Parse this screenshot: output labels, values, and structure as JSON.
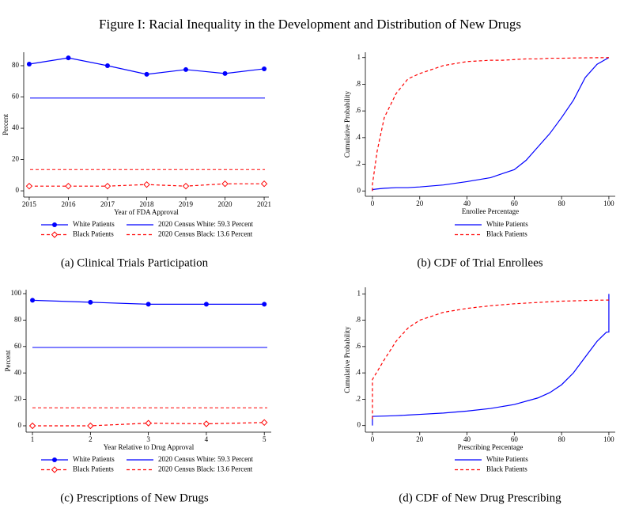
{
  "title": "Figure I: Racial Inequality in the Development and Distribution of New Drugs",
  "chart_data": [
    {
      "type": "line",
      "caption": "(a) Clinical Trials Participation",
      "xlabel": "Year of FDA Approval",
      "ylabel": "Percent",
      "x": [
        2015,
        2016,
        2017,
        2018,
        2019,
        2020,
        2021
      ],
      "xlim": [
        2014.86,
        2021.12
      ],
      "xticks": [
        2015,
        2016,
        2017,
        2018,
        2019,
        2020,
        2021
      ],
      "ylim": [
        -4,
        88.6
      ],
      "yticks": [
        0,
        20,
        40,
        60,
        80
      ],
      "series": [
        {
          "name": "White Patients",
          "color": "#0000ff",
          "dash": false,
          "marker": "circle",
          "values": [
            81,
            85,
            80,
            74.5,
            77.5,
            75,
            78
          ]
        },
        {
          "name": "Black Patients",
          "color": "#ff0000",
          "dash": true,
          "marker": "diamond",
          "values": [
            3,
            3,
            3,
            4,
            3,
            4.5,
            4.5
          ]
        }
      ],
      "reference_lines": [
        {
          "name": "2020 Census White: 59.3 Percent",
          "value": 59.3,
          "color": "#0000ff",
          "dash": false
        },
        {
          "name": "2020 Census Black: 13.6 Percent",
          "value": 13.6,
          "color": "#ff0000",
          "dash": true
        }
      ]
    },
    {
      "type": "line",
      "caption": "(b) CDF of Trial Enrollees",
      "xlabel": "Enrollee Percentage",
      "ylabel": "Cumulative Probability",
      "x": [
        0,
        0,
        2,
        5,
        10,
        15,
        20,
        30,
        40,
        50,
        55,
        60,
        65,
        70,
        75,
        80,
        85,
        90,
        95,
        100
      ],
      "xlim": [
        -3,
        102.7
      ],
      "xticks": [
        0,
        20,
        40,
        60,
        80,
        100
      ],
      "ylim": [
        -0.04,
        1.04
      ],
      "yticks": [
        0,
        {
          "value": 0.2,
          "label": ".2"
        },
        {
          "value": 0.4,
          "label": ".4"
        },
        {
          "value": 0.6,
          "label": ".6"
        },
        {
          "value": 0.8,
          "label": ".8"
        },
        1
      ],
      "series": [
        {
          "name": "White Patients",
          "color": "#0000ff",
          "dash": false,
          "values": [
            0,
            0.01,
            0.015,
            0.02,
            0.025,
            0.025,
            0.03,
            0.045,
            0.07,
            0.1,
            0.13,
            0.16,
            0.23,
            0.33,
            0.43,
            0.55,
            0.68,
            0.85,
            0.95,
            1.0
          ]
        },
        {
          "name": "Black Patients",
          "color": "#ff0000",
          "dash": true,
          "values": [
            0,
            0.05,
            0.3,
            0.55,
            0.73,
            0.84,
            0.88,
            0.94,
            0.97,
            0.98,
            0.98,
            0.985,
            0.99,
            0.99,
            0.995,
            0.995,
            0.997,
            0.998,
            0.999,
            1.0
          ]
        }
      ]
    },
    {
      "type": "line",
      "caption": "(c) Prescriptions of New Drugs",
      "xlabel": "Year Relative to Drug Approval",
      "ylabel": "Percent",
      "x": [
        1,
        2,
        3,
        4,
        5
      ],
      "xlim": [
        0.89,
        5.12
      ],
      "xticks": [
        1,
        2,
        3,
        4,
        5
      ],
      "ylim": [
        -4.8,
        103
      ],
      "yticks": [
        0,
        20,
        40,
        60,
        80,
        100
      ],
      "series": [
        {
          "name": "White Patients",
          "color": "#0000ff",
          "dash": false,
          "marker": "circle",
          "values": [
            95,
            93.5,
            92,
            92,
            92
          ]
        },
        {
          "name": "Black Patients",
          "color": "#ff0000",
          "dash": true,
          "marker": "diamond",
          "values": [
            0,
            0,
            2,
            1.5,
            2.5
          ]
        }
      ],
      "reference_lines": [
        {
          "name": "2020 Census White: 59.3 Percent",
          "value": 59.3,
          "color": "#0000ff",
          "dash": false
        },
        {
          "name": "2020 Census Black: 13.6 Percent",
          "value": 13.6,
          "color": "#ff0000",
          "dash": true
        }
      ]
    },
    {
      "type": "line",
      "caption": "(d) CDF of New Drug Prescribing",
      "xlabel": "Prescribing Percentage",
      "ylabel": "Cumulative Probability",
      "x": [
        0,
        0,
        5,
        10,
        15,
        20,
        30,
        40,
        50,
        60,
        70,
        75,
        80,
        85,
        90,
        95,
        99,
        100,
        100
      ],
      "xlim": [
        -3,
        102.7
      ],
      "xticks": [
        0,
        20,
        40,
        60,
        80,
        100
      ],
      "ylim": [
        -0.05,
        1.05
      ],
      "yticks": [
        0,
        {
          "value": 0.2,
          "label": ".2"
        },
        {
          "value": 0.4,
          "label": ".4"
        },
        {
          "value": 0.6,
          "label": ".6"
        },
        {
          "value": 0.8,
          "label": ".8"
        },
        1
      ],
      "series": [
        {
          "name": "White Patients",
          "color": "#0000ff",
          "dash": false,
          "values": [
            0,
            0.07,
            0.072,
            0.075,
            0.08,
            0.085,
            0.095,
            0.11,
            0.13,
            0.16,
            0.21,
            0.25,
            0.31,
            0.4,
            0.52,
            0.64,
            0.71,
            0.71,
            1.0
          ]
        },
        {
          "name": "Black Patients",
          "color": "#ff0000",
          "dash": true,
          "values": [
            0.05,
            0.35,
            0.5,
            0.64,
            0.74,
            0.8,
            0.86,
            0.89,
            0.91,
            0.925,
            0.935,
            0.94,
            0.945,
            0.947,
            0.95,
            0.952,
            0.953,
            0.953,
            0.953
          ]
        }
      ]
    }
  ]
}
